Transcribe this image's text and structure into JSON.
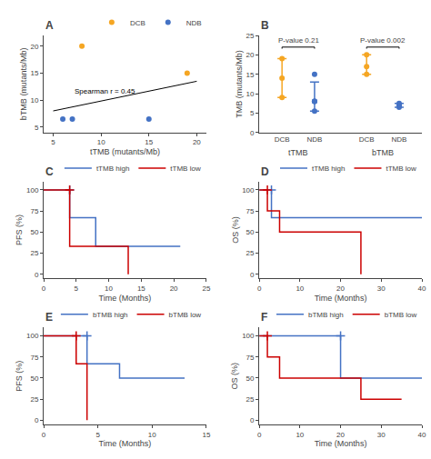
{
  "chart_data": [
    {
      "type": "scatter",
      "title": "A",
      "xlabel": "tTMB (mutants/Mb)",
      "ylabel": "bTMB (mutants/Mb)",
      "series": [
        {
          "name": "DCB",
          "color": "#F5A623",
          "marker": "circle",
          "x": [
            8,
            19
          ],
          "values": [
            20,
            15
          ]
        },
        {
          "name": "NDB",
          "color": "#4472C4",
          "marker": "circle",
          "x": [
            6,
            7,
            15
          ],
          "values": [
            6.5,
            6.5,
            6.5
          ]
        },
        {
          "type": "line",
          "color": "black",
          "x": [
            5,
            20
          ],
          "values": [
            8.0,
            13.5
          ]
        }
      ],
      "annotations": [
        {
          "text": "Spearman r = 0.45",
          "x": 7,
          "y": 10.5
        }
      ],
      "xlim": [
        4,
        21
      ],
      "ylim": [
        4,
        22
      ],
      "xticks": [
        5,
        10,
        15,
        20
      ],
      "yticks": [
        5,
        10,
        15,
        20
      ],
      "grid": false,
      "legend": "upper right"
    },
    {
      "type": "strip",
      "title": "B",
      "ylabel": "TMB (mutants/Mb)",
      "categories": [
        "DCB",
        "NDB",
        "DCB",
        "NDB"
      ],
      "group_labels": [
        "tTMB",
        "bTMB"
      ],
      "colors": [
        "#F5A623",
        "#4472C4",
        "#F5A623",
        "#4472C4"
      ],
      "points": [
        [
          9,
          14,
          19
        ],
        [
          5.5,
          8,
          8,
          8,
          15
        ],
        [
          15,
          17,
          20
        ],
        [
          6.5,
          7,
          7,
          7,
          7.5
        ]
      ],
      "medians": [
        14,
        8,
        17,
        7
      ],
      "error_lo": [
        5,
        2.5,
        2,
        0.5
      ],
      "error_hi": [
        5,
        5,
        3,
        0.5
      ],
      "brackets": [
        {
          "from": 0,
          "to": 1,
          "y": 22.0,
          "text": "P-value 0.21"
        },
        {
          "from": 2,
          "to": 3,
          "y": 22.0,
          "text": "P-value 0.002"
        }
      ],
      "ylim": [
        0,
        25
      ],
      "yticks": [
        0,
        5,
        10,
        15,
        20,
        25
      ],
      "grid": false
    },
    {
      "type": "step",
      "title": "C",
      "xlabel": "Time (Months)",
      "ylabel": "PFS (%)",
      "series": [
        {
          "name": "tTMB high",
          "color": "#4472C4",
          "marker": "plus",
          "x": [
            0,
            4,
            4,
            8,
            8,
            21
          ],
          "values": [
            100,
            100,
            67,
            67,
            33,
            33
          ],
          "censor_x": [
            4
          ],
          "censor_y": [
            100
          ]
        },
        {
          "name": "tTMB low",
          "color": "#CC0000",
          "marker": "plus",
          "x": [
            0,
            4,
            4,
            13,
            13
          ],
          "values": [
            100,
            100,
            33,
            33,
            0
          ],
          "censor_x": [
            4
          ],
          "censor_y": [
            100
          ]
        }
      ],
      "xlim": [
        0,
        25
      ],
      "ylim": [
        -5,
        110
      ],
      "xticks": [
        0,
        5,
        10,
        15,
        20,
        25
      ],
      "yticks": [
        0,
        25,
        50,
        75,
        100
      ],
      "grid": false,
      "legend": "upper right"
    },
    {
      "type": "step",
      "title": "D",
      "xlabel": "Time (Months)",
      "ylabel": "OS (%)",
      "series": [
        {
          "name": "tTMB high",
          "color": "#4472C4",
          "marker": "plus",
          "x": [
            0,
            3,
            3,
            20,
            20,
            40
          ],
          "values": [
            100,
            100,
            67,
            67,
            67,
            67
          ],
          "censor_x": [
            3
          ],
          "censor_y": [
            100
          ]
        },
        {
          "name": "tTMB low",
          "color": "#CC0000",
          "marker": "plus",
          "x": [
            0,
            2,
            2,
            5,
            5,
            10,
            10,
            25,
            25
          ],
          "values": [
            100,
            100,
            75,
            75,
            50,
            50,
            50,
            50,
            0
          ],
          "censor_x": [
            2
          ],
          "censor_y": [
            100
          ]
        }
      ],
      "xlim": [
        0,
        40
      ],
      "ylim": [
        -5,
        110
      ],
      "xticks": [
        0,
        10,
        20,
        30,
        40
      ],
      "yticks": [
        0,
        25,
        50,
        75,
        100
      ],
      "grid": false,
      "legend": "upper right"
    },
    {
      "type": "step",
      "title": "E",
      "xlabel": "Time (Months)",
      "ylabel": "PFS (%)",
      "series": [
        {
          "name": "bTMB high",
          "color": "#4472C4",
          "marker": "plus",
          "x": [
            0,
            4,
            4,
            7,
            7,
            10,
            10,
            13
          ],
          "values": [
            100,
            100,
            67,
            67,
            50,
            50,
            50,
            50
          ],
          "censor_x": [
            4
          ],
          "censor_y": [
            100
          ]
        },
        {
          "name": "bTMB low",
          "color": "#CC0000",
          "marker": "plus",
          "x": [
            0,
            3,
            3,
            4,
            4
          ],
          "values": [
            100,
            100,
            67,
            67,
            0
          ],
          "censor_x": [
            3
          ],
          "censor_y": [
            100
          ]
        }
      ],
      "xlim": [
        0,
        15
      ],
      "ylim": [
        -5,
        110
      ],
      "xticks": [
        0,
        5,
        10,
        15
      ],
      "yticks": [
        0,
        25,
        50,
        75,
        100
      ],
      "grid": false,
      "legend": "upper right"
    },
    {
      "type": "step",
      "title": "F",
      "xlabel": "Time (Months)",
      "ylabel": "OS (%)",
      "series": [
        {
          "name": "bTMB high",
          "color": "#4472C4",
          "marker": "plus",
          "x": [
            0,
            20,
            20,
            25,
            25,
            40
          ],
          "values": [
            100,
            100,
            50,
            50,
            50,
            50
          ],
          "censor_x": [
            20
          ],
          "censor_y": [
            100
          ]
        },
        {
          "name": "bTMB low",
          "color": "#CC0000",
          "marker": "plus",
          "x": [
            0,
            2,
            2,
            5,
            5,
            10,
            10,
            25,
            25,
            35,
            35
          ],
          "values": [
            100,
            100,
            75,
            75,
            50,
            50,
            50,
            50,
            25,
            25,
            25
          ],
          "censor_x": [
            2
          ],
          "censor_y": [
            100
          ]
        }
      ],
      "xlim": [
        0,
        40
      ],
      "ylim": [
        -5,
        110
      ],
      "xticks": [
        0,
        10,
        20,
        30,
        40
      ],
      "yticks": [
        0,
        25,
        50,
        75,
        100
      ],
      "grid": false,
      "legend": "upper right"
    }
  ]
}
